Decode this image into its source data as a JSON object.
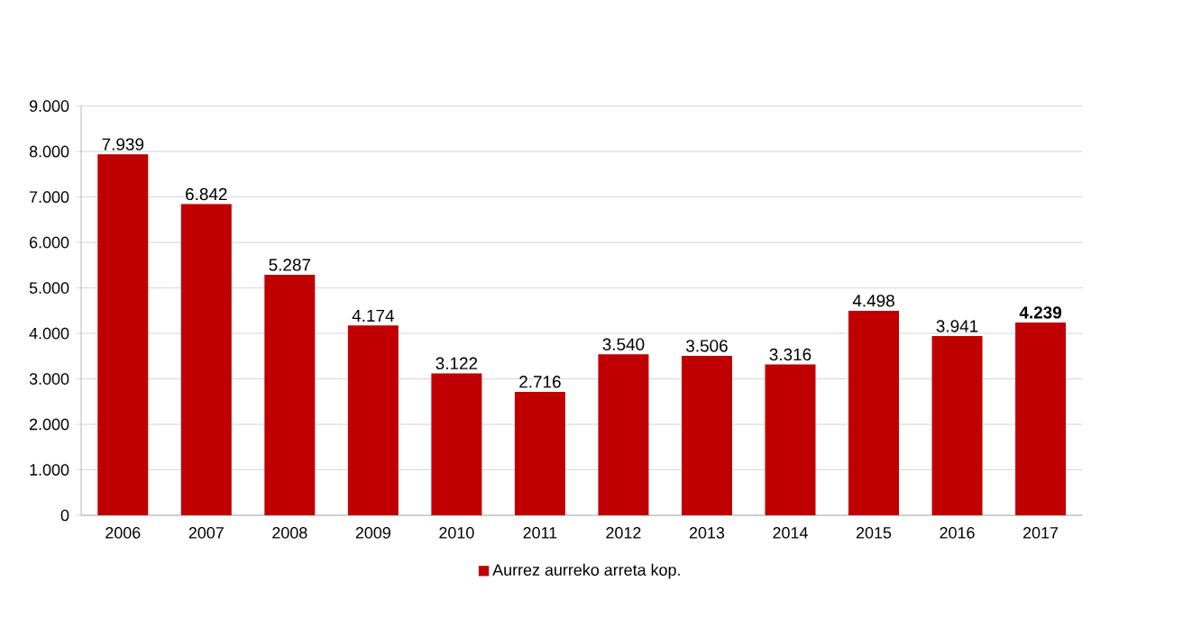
{
  "chart_data": {
    "type": "bar",
    "categories": [
      "2006",
      "2007",
      "2008",
      "2009",
      "2010",
      "2011",
      "2012",
      "2013",
      "2014",
      "2015",
      "2016",
      "2017"
    ],
    "series": [
      {
        "name": "Aurrez aurreko arreta kop.",
        "color": "#c00000",
        "values": [
          7939,
          6842,
          5287,
          4174,
          3122,
          2716,
          3540,
          3506,
          3316,
          4498,
          3941,
          4239
        ]
      }
    ],
    "value_labels": [
      "7.939",
      "6.842",
      "5.287",
      "4.174",
      "3.122",
      "2.716",
      "3.540",
      "3.506",
      "3.316",
      "4.498",
      "3.941",
      "**4.239**"
    ],
    "ylim": [
      0,
      9000
    ],
    "yticks": [
      {
        "value": 0,
        "label": "0"
      },
      {
        "value": 1000,
        "label": "1.000"
      },
      {
        "value": 2000,
        "label": "2.000"
      },
      {
        "value": 3000,
        "label": "3.000"
      },
      {
        "value": 4000,
        "label": "4.000"
      },
      {
        "value": 5000,
        "label": "5.000"
      },
      {
        "value": 6000,
        "label": "6.000"
      },
      {
        "value": 7000,
        "label": "7.000"
      },
      {
        "value": 8000,
        "label": "8.000"
      },
      {
        "value": 9000,
        "label": "9.000"
      }
    ],
    "grid": "y",
    "legend": "bottom"
  }
}
